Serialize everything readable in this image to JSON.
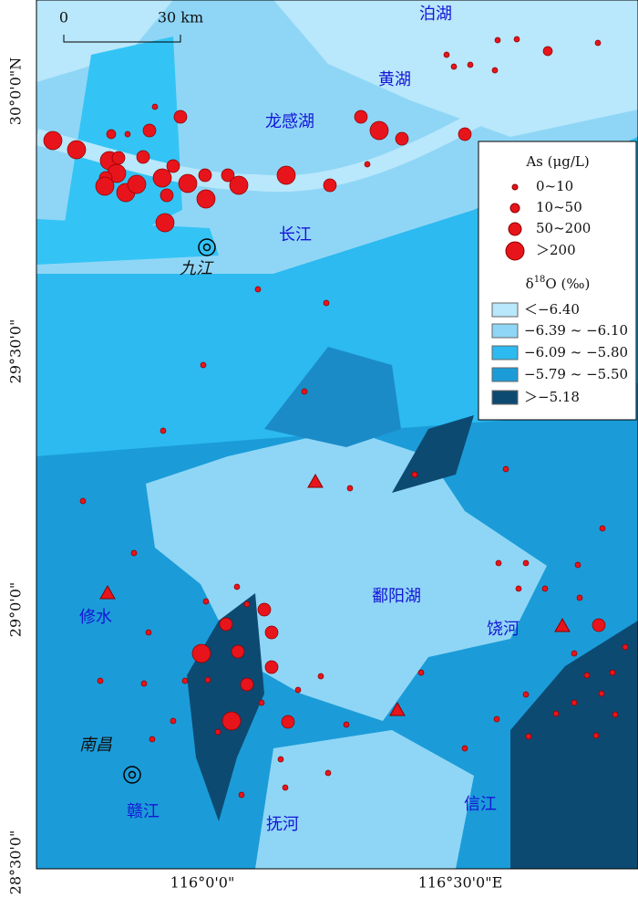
{
  "scale_bar": {
    "start": "0",
    "end": "30 km"
  },
  "places": [
    "泊湖",
    "黄湖",
    "龙感湖",
    "长江",
    "九江",
    "鄱阳湖",
    "修水",
    "饶河",
    "南昌",
    "赣江",
    "抚河",
    "信江"
  ],
  "lat_labels": [
    "30°0'0\"N",
    "29°30'0\"",
    "29°0'0\"",
    "28°30'0\""
  ],
  "lon_labels": [
    "116°0'0\"",
    "116°30'0\"E"
  ],
  "legend": {
    "as_title": "As (μg/L)",
    "as_classes": [
      "0~10",
      "10~50",
      "50~200",
      "＞200"
    ],
    "o_title": {
      "prefix": "δ",
      "superscript": "18",
      "suffix": "O (‰)"
    },
    "o_classes": [
      "＜−6.40",
      "−6.39 ~ −6.10",
      "−6.09 ~ −5.80",
      "−5.79 ~ −5.50",
      "＞−5.18"
    ]
  }
}
